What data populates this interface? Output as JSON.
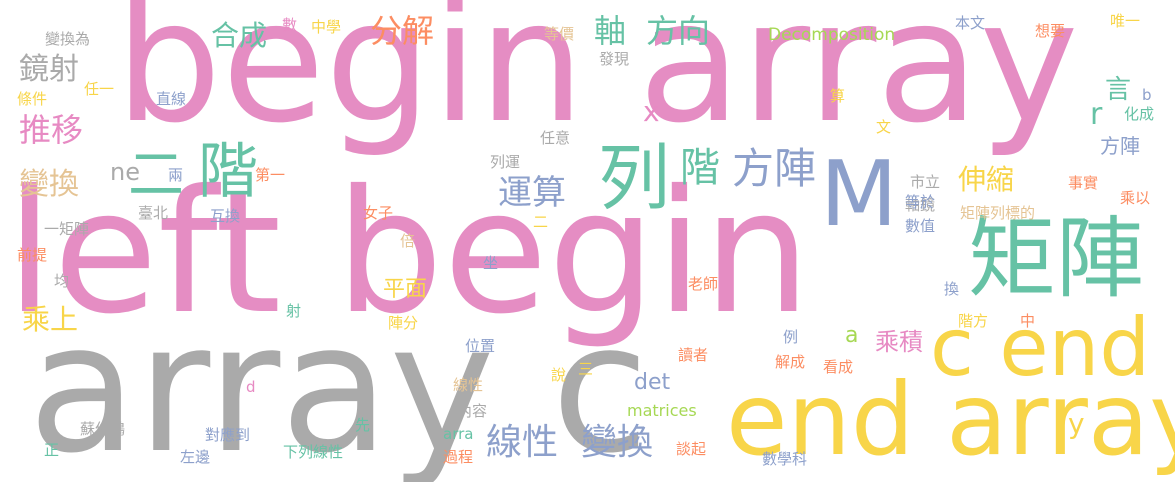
{
  "words": {
    "begin_array": "begin array",
    "left_begin": "left begin",
    "array_c": "array c",
    "end_array": "end array",
    "c_end": "c end",
    "juzhen": "矩陣",
    "M": "M",
    "lie": "列",
    "jie": "階",
    "jie2": "階",
    "er": "二",
    "fangzhen": "方陣",
    "xianxing": "線性",
    "bianhuan": "變換",
    "yunsuan": "運算",
    "fenjie": "分解",
    "zhou": "軸",
    "fangxiang": "方向",
    "hecheng": "合成",
    "jingshe": "鏡射",
    "tuiyi": "推移",
    "bianhuan2": "變換",
    "shensuo": "伸縮",
    "chengshang": "乘上",
    "pingmian": "平面",
    "chengji": "乘積",
    "det": "det",
    "x": "x",
    "a": "a",
    "r": "r",
    "y": "y",
    "ne": "ne",
    "yan": "言",
    "fangzhen2": "方陣",
    "decomposition": "Decomposition",
    "matrices": "matrices",
    "arra": "arra",
    "bianhuanwei": "變換為",
    "tiaojian": "條件",
    "renyi": "任一",
    "zhixian": "直線",
    "shu": "數",
    "zhongxue": "中學",
    "dengjia": "等價",
    "faxian": "發現",
    "benwen": "本文",
    "xiangyao": "想要",
    "weiyi": "唯一",
    "b": "b",
    "huacheng": "化成",
    "suan": "算",
    "wen": "文",
    "shishi": "事實",
    "chengyi": "乘以",
    "shili": "市立",
    "zhoujing": "軸鏡",
    "dengyu": "等於",
    "shuzhi": "數值",
    "juzhenliebiaode": "矩陣列標的",
    "renyi2": "任意",
    "lieyun": "列運",
    "diyi": "第一",
    "liang": "兩",
    "taibei": "臺北",
    "huhuan": "互換",
    "yijuzhen": "一矩陣",
    "nvzi": "女子",
    "er2": "二",
    "bei": "倍",
    "qianti": "前提",
    "jun": "均",
    "zuo": "坐",
    "laoshi": "老師",
    "she": "射",
    "zhenfen": "陣分",
    "huan": "換",
    "jiefang": "階方",
    "zhong": "中",
    "li": "例",
    "weizhi": "位置",
    "d": "d",
    "jiecheng": "解成",
    "kancheng": "看成",
    "duzhe": "讀者",
    "xianxing2": "線性",
    "shuo": "說",
    "san": "三",
    "neirong": "內容",
    "xian": "先",
    "sujunhong": "蘇俊鴻",
    "duiyingdao": "對應到",
    "zheng": "正",
    "zuobian": "左邊",
    "xialiexianxing": "下列線性",
    "guocheng": "過程",
    "tanqi": "談起",
    "shuxueke": "數學科"
  }
}
